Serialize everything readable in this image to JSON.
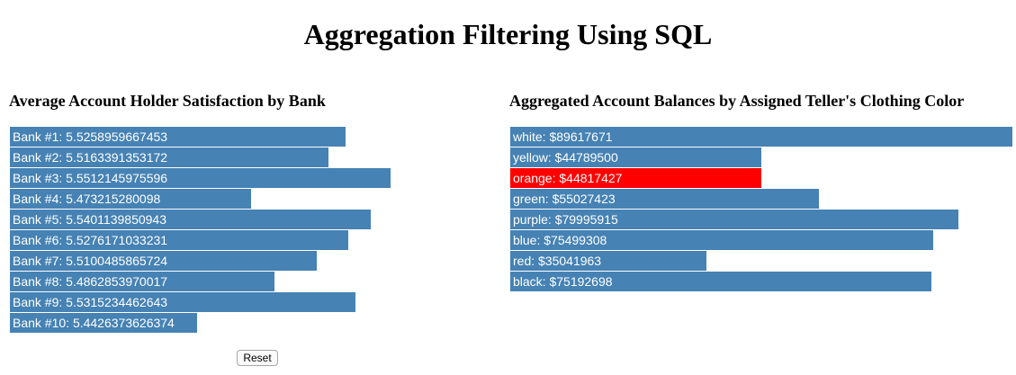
{
  "page_title": "Aggregation Filtering Using SQL",
  "reset_label": "Reset",
  "colors": {
    "bar": "#4682b4",
    "highlight": "#ff0000",
    "text": "#ffffff"
  },
  "chart_data": [
    {
      "type": "bar",
      "orientation": "horizontal",
      "title": "Average Account Holder Satisfaction by Bank",
      "categories": [
        "Bank #1",
        "Bank #2",
        "Bank #3",
        "Bank #4",
        "Bank #5",
        "Bank #6",
        "Bank #7",
        "Bank #8",
        "Bank #9",
        "Bank #10"
      ],
      "labels": [
        "Bank #1: 5.5258959667453",
        "Bank #2: 5.5163391353172",
        "Bank #3: 5.5512145975596",
        "Bank #4: 5.473215280098",
        "Bank #5: 5.5401139850943",
        "Bank #6: 5.5276171033231",
        "Bank #7: 5.5100485865724",
        "Bank #8: 5.4862853970017",
        "Bank #9: 5.5315234462643",
        "Bank #10: 5.4426373626374"
      ],
      "values": [
        5.5258959667453,
        5.5163391353172,
        5.5512145975596,
        5.473215280098,
        5.5401139850943,
        5.5276171033231,
        5.5100485865724,
        5.4862853970017,
        5.5315234462643,
        5.4426373626374
      ],
      "xlim": [
        5.4,
        5.5512145975596
      ]
    },
    {
      "type": "bar",
      "orientation": "horizontal",
      "title": "Aggregated Account Balances by Assigned Teller's Clothing Color",
      "categories": [
        "white",
        "yellow",
        "orange",
        "green",
        "purple",
        "blue",
        "red",
        "black"
      ],
      "labels": [
        "white: $89617671",
        "yellow: $44789500",
        "orange: $44817427",
        "green: $55027423",
        "purple: $79995915",
        "blue: $75499308",
        "red: $35041963",
        "black: $75192698"
      ],
      "values": [
        89617671,
        44789500,
        44817427,
        55027423,
        79995915,
        75499308,
        35041963,
        75192698
      ],
      "highlighted": [
        "orange"
      ],
      "xlim": [
        0,
        89617671
      ]
    }
  ]
}
